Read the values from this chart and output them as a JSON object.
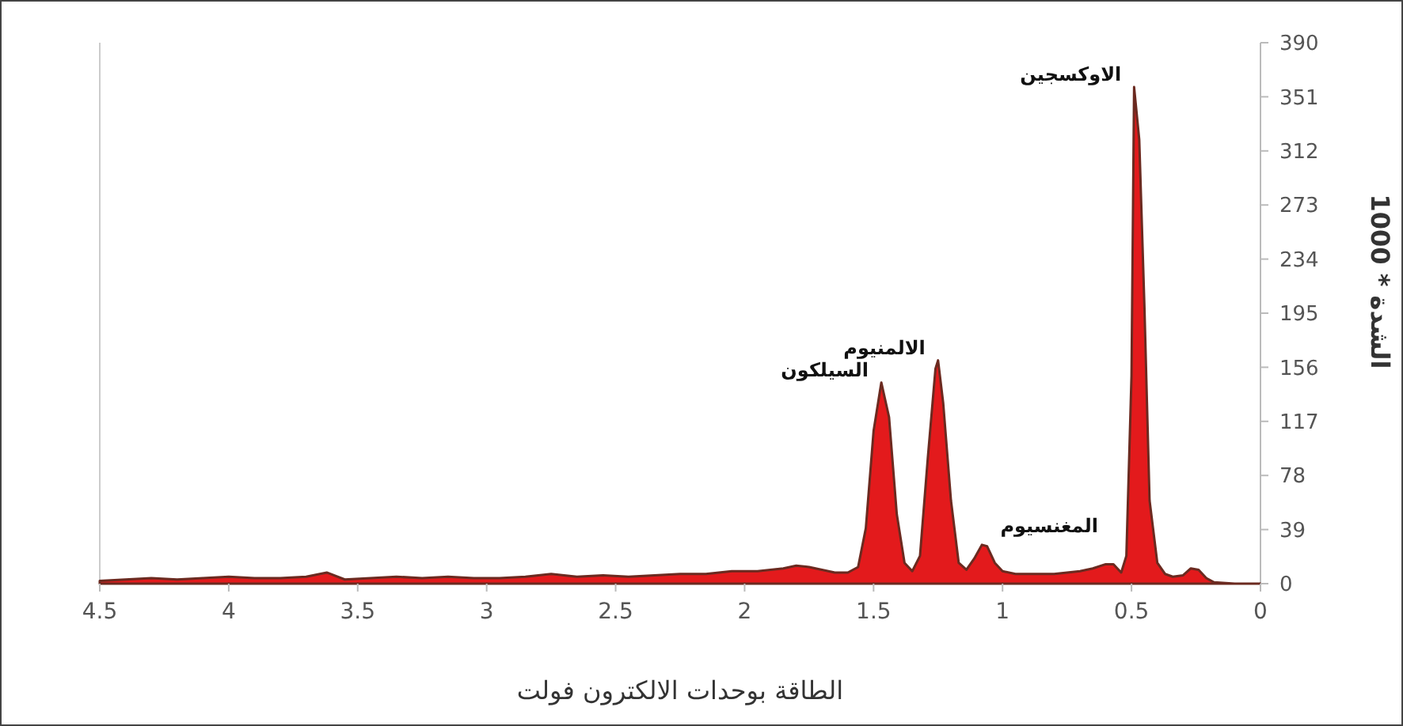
{
  "chart_data": {
    "type": "area",
    "xlabel": "الطاقة بوحدات الالكترون فولت",
    "ylabel": "الشدة * 1000",
    "xlim": [
      4.5,
      0
    ],
    "xticks": [
      {
        "value": 4.5,
        "label": "4.5"
      },
      4,
      {
        "value": 3.5,
        "label": "3.5"
      },
      3,
      {
        "value": 2.5,
        "label": "2.5"
      },
      2,
      {
        "value": 1.5,
        "label": "1.5"
      },
      1,
      {
        "value": 0.5,
        "label": "0.5"
      },
      0
    ],
    "ylim": [
      0,
      390
    ],
    "yticks": [
      0,
      39,
      78,
      117,
      156,
      195,
      234,
      273,
      312,
      351,
      390
    ],
    "grid": false,
    "x": [
      4.5,
      4.4,
      4.3,
      4.2,
      4.1,
      4.0,
      3.9,
      3.8,
      3.7,
      3.62,
      3.55,
      3.45,
      3.35,
      3.25,
      3.15,
      3.05,
      2.95,
      2.85,
      2.75,
      2.65,
      2.55,
      2.45,
      2.35,
      2.25,
      2.15,
      2.05,
      1.95,
      1.85,
      1.8,
      1.75,
      1.7,
      1.65,
      1.6,
      1.56,
      1.53,
      1.5,
      1.47,
      1.44,
      1.41,
      1.38,
      1.35,
      1.32,
      1.29,
      1.26,
      1.25,
      1.23,
      1.2,
      1.17,
      1.14,
      1.11,
      1.08,
      1.06,
      1.03,
      1.0,
      0.95,
      0.9,
      0.85,
      0.8,
      0.75,
      0.7,
      0.65,
      0.6,
      0.57,
      0.54,
      0.52,
      0.5,
      0.49,
      0.47,
      0.45,
      0.43,
      0.4,
      0.37,
      0.34,
      0.3,
      0.27,
      0.24,
      0.21,
      0.18,
      0.1,
      0
    ],
    "series": [
      {
        "color": "#e31a1c",
        "values": [
          2,
          3,
          4,
          3,
          4,
          5,
          4,
          4,
          5,
          8,
          3,
          4,
          5,
          4,
          5,
          4,
          4,
          5,
          7,
          5,
          6,
          5,
          6,
          7,
          7,
          9,
          9,
          11,
          13,
          12,
          10,
          8,
          8,
          12,
          40,
          110,
          145,
          120,
          50,
          15,
          9,
          20,
          90,
          155,
          161,
          130,
          60,
          15,
          10,
          18,
          28,
          27,
          15,
          9,
          7,
          7,
          7,
          7,
          8,
          9,
          11,
          14,
          14,
          8,
          20,
          150,
          358,
          320,
          200,
          60,
          15,
          7,
          5,
          6,
          11,
          10,
          4,
          1,
          0,
          0
        ]
      }
    ],
    "annotations": [
      {
        "text": "الاوكسجين",
        "x": 0.49,
        "y": 358
      },
      {
        "text": "الالمنيوم",
        "x": 1.25,
        "y": 161
      },
      {
        "text": "السيلكون",
        "x": 1.47,
        "y": 145
      },
      {
        "text": "المغنسيوم",
        "x": 1.07,
        "y": 28
      }
    ]
  }
}
